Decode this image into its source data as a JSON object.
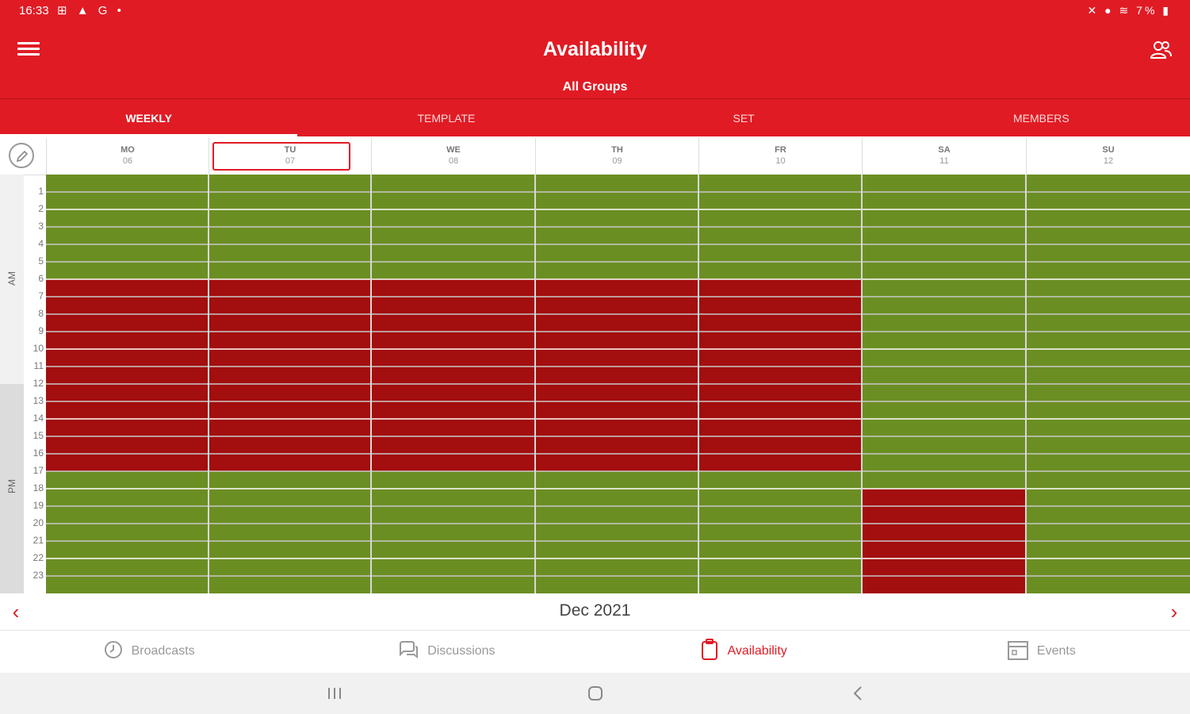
{
  "status_bar": {
    "time": "16:33",
    "left_icons": "⊞ ▲ G •",
    "right_text": "7%"
  },
  "app_bar": {
    "title": "Availability",
    "subtitle": "All Groups"
  },
  "tabs": [
    {
      "label": "WEEKLY",
      "active": true
    },
    {
      "label": "TEMPLATE",
      "active": false
    },
    {
      "label": "SET",
      "active": false
    },
    {
      "label": "MEMBERS",
      "active": false
    }
  ],
  "days": [
    {
      "name": "MO",
      "date": "06",
      "today": false
    },
    {
      "name": "TU",
      "date": "07",
      "today": true
    },
    {
      "name": "WE",
      "date": "08",
      "today": false
    },
    {
      "name": "TH",
      "date": "09",
      "today": false
    },
    {
      "name": "FR",
      "date": "10",
      "today": false
    },
    {
      "name": "SA",
      "date": "11",
      "today": false
    },
    {
      "name": "SU",
      "date": "12",
      "today": false
    }
  ],
  "period_labels": {
    "am": "AM",
    "pm": "PM"
  },
  "hours": [
    "1",
    "2",
    "3",
    "4",
    "5",
    "6",
    "7",
    "8",
    "9",
    "10",
    "11",
    "12",
    "13",
    "14",
    "15",
    "16",
    "17",
    "18",
    "19",
    "20",
    "21",
    "22",
    "23"
  ],
  "availability_grid": {
    "colors": {
      "available": "#6b8e23",
      "unavailable": "#a30e0e"
    },
    "rows": 24,
    "unavailable_ranges": [
      {
        "day": "MO",
        "from_hour": 6,
        "to_hour": 17
      },
      {
        "day": "TU",
        "from_hour": 6,
        "to_hour": 17
      },
      {
        "day": "WE",
        "from_hour": 6,
        "to_hour": 17
      },
      {
        "day": "TH",
        "from_hour": 6,
        "to_hour": 17
      },
      {
        "day": "FR",
        "from_hour": 6,
        "to_hour": 17
      },
      {
        "day": "SA",
        "from_hour": 18,
        "to_hour": 24
      }
    ]
  },
  "date_nav": {
    "label": "Dec 2021",
    "prev": "‹",
    "next": "›"
  },
  "bottom_nav": [
    {
      "label": "Broadcasts",
      "icon": "clock-icon",
      "active": false
    },
    {
      "label": "Discussions",
      "icon": "chat-bubbles-icon",
      "active": false
    },
    {
      "label": "Availability",
      "icon": "clipboard-icon",
      "active": true
    },
    {
      "label": "Events",
      "icon": "calendar-icon",
      "active": false
    }
  ]
}
